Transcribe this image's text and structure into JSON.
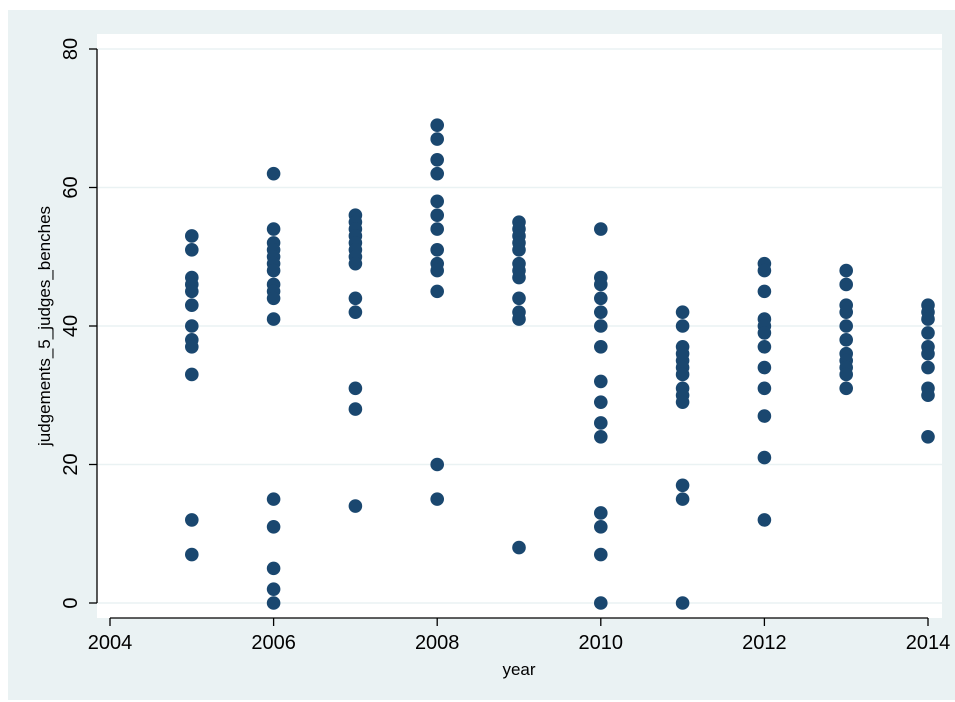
{
  "chart_data": {
    "type": "scatter",
    "title": "",
    "xlabel": "year",
    "ylabel": "judgements_5_judges_benches",
    "xlim": [
      2004,
      2014
    ],
    "ylim": [
      0,
      80
    ],
    "x_ticks": [
      2004,
      2006,
      2008,
      2010,
      2012,
      2014
    ],
    "y_ticks": [
      0,
      20,
      40,
      60,
      80
    ],
    "grid": "horizontal",
    "legend": "none",
    "colors": {
      "outer_background": "#eaf2f3",
      "plot_background": "#ffffff",
      "gridline": "#eaf2f3",
      "marker": "#1a476f",
      "axis": "#000000"
    },
    "series": [
      {
        "points": [
          [
            2005,
            53
          ],
          [
            2005,
            51
          ],
          [
            2005,
            47
          ],
          [
            2005,
            46
          ],
          [
            2005,
            45
          ],
          [
            2005,
            43
          ],
          [
            2005,
            40
          ],
          [
            2005,
            38
          ],
          [
            2005,
            37
          ],
          [
            2005,
            33
          ],
          [
            2005,
            12
          ],
          [
            2005,
            7
          ],
          [
            2006,
            62
          ],
          [
            2006,
            54
          ],
          [
            2006,
            52
          ],
          [
            2006,
            51
          ],
          [
            2006,
            50
          ],
          [
            2006,
            49
          ],
          [
            2006,
            48
          ],
          [
            2006,
            46
          ],
          [
            2006,
            45
          ],
          [
            2006,
            44
          ],
          [
            2006,
            41
          ],
          [
            2006,
            15
          ],
          [
            2006,
            11
          ],
          [
            2006,
            5
          ],
          [
            2006,
            2
          ],
          [
            2006,
            0
          ],
          [
            2007,
            56
          ],
          [
            2007,
            55
          ],
          [
            2007,
            54
          ],
          [
            2007,
            53
          ],
          [
            2007,
            52
          ],
          [
            2007,
            51
          ],
          [
            2007,
            50
          ],
          [
            2007,
            49
          ],
          [
            2007,
            44
          ],
          [
            2007,
            42
          ],
          [
            2007,
            31
          ],
          [
            2007,
            28
          ],
          [
            2007,
            14
          ],
          [
            2008,
            69
          ],
          [
            2008,
            67
          ],
          [
            2008,
            64
          ],
          [
            2008,
            62
          ],
          [
            2008,
            58
          ],
          [
            2008,
            56
          ],
          [
            2008,
            54
          ],
          [
            2008,
            51
          ],
          [
            2008,
            49
          ],
          [
            2008,
            48
          ],
          [
            2008,
            45
          ],
          [
            2008,
            20
          ],
          [
            2008,
            15
          ],
          [
            2009,
            55
          ],
          [
            2009,
            54
          ],
          [
            2009,
            53
          ],
          [
            2009,
            52
          ],
          [
            2009,
            51
          ],
          [
            2009,
            49
          ],
          [
            2009,
            48
          ],
          [
            2009,
            47
          ],
          [
            2009,
            44
          ],
          [
            2009,
            42
          ],
          [
            2009,
            41
          ],
          [
            2009,
            8
          ],
          [
            2010,
            54
          ],
          [
            2010,
            47
          ],
          [
            2010,
            46
          ],
          [
            2010,
            44
          ],
          [
            2010,
            42
          ],
          [
            2010,
            40
          ],
          [
            2010,
            37
          ],
          [
            2010,
            32
          ],
          [
            2010,
            29
          ],
          [
            2010,
            26
          ],
          [
            2010,
            24
          ],
          [
            2010,
            13
          ],
          [
            2010,
            11
          ],
          [
            2010,
            7
          ],
          [
            2010,
            0
          ],
          [
            2011,
            42
          ],
          [
            2011,
            40
          ],
          [
            2011,
            37
          ],
          [
            2011,
            36
          ],
          [
            2011,
            35
          ],
          [
            2011,
            34
          ],
          [
            2011,
            33
          ],
          [
            2011,
            31
          ],
          [
            2011,
            30
          ],
          [
            2011,
            29
          ],
          [
            2011,
            17
          ],
          [
            2011,
            15
          ],
          [
            2011,
            0
          ],
          [
            2012,
            49
          ],
          [
            2012,
            48
          ],
          [
            2012,
            45
          ],
          [
            2012,
            41
          ],
          [
            2012,
            40
          ],
          [
            2012,
            39
          ],
          [
            2012,
            37
          ],
          [
            2012,
            34
          ],
          [
            2012,
            31
          ],
          [
            2012,
            27
          ],
          [
            2012,
            21
          ],
          [
            2012,
            12
          ],
          [
            2013,
            48
          ],
          [
            2013,
            46
          ],
          [
            2013,
            43
          ],
          [
            2013,
            42
          ],
          [
            2013,
            40
          ],
          [
            2013,
            38
          ],
          [
            2013,
            36
          ],
          [
            2013,
            35
          ],
          [
            2013,
            34
          ],
          [
            2013,
            33
          ],
          [
            2013,
            31
          ],
          [
            2014,
            43
          ],
          [
            2014,
            42
          ],
          [
            2014,
            41
          ],
          [
            2014,
            39
          ],
          [
            2014,
            37
          ],
          [
            2014,
            36
          ],
          [
            2014,
            34
          ],
          [
            2014,
            31
          ],
          [
            2014,
            30
          ],
          [
            2014,
            24
          ]
        ]
      }
    ]
  }
}
